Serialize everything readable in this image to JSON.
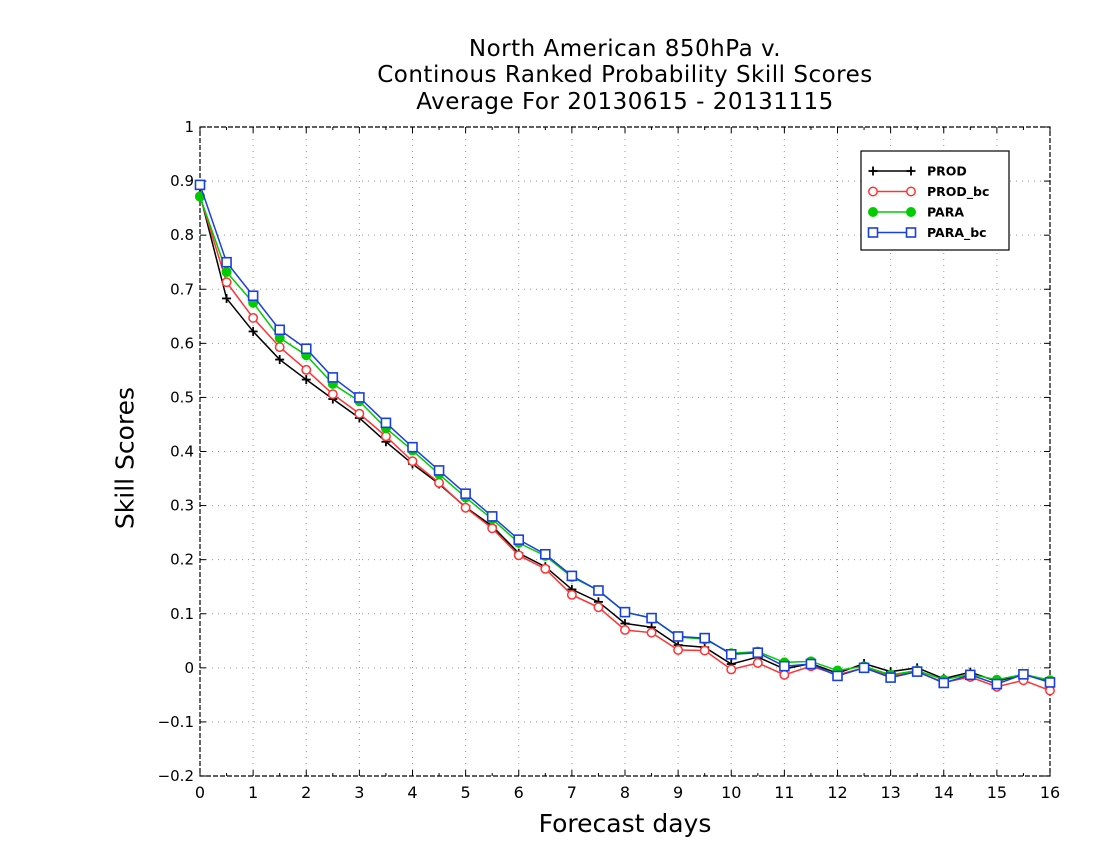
{
  "chart_data": {
    "type": "line",
    "title": [
      "North American 850hPa v.",
      "Continous Ranked Probability Skill Scores",
      "Average For 20130615 - 20131115"
    ],
    "xlabel": "Forecast days",
    "ylabel": "Skill Scores",
    "xlim": [
      0,
      16
    ],
    "ylim": [
      -0.2,
      1
    ],
    "x_ticks": [
      "0",
      "1",
      "2",
      "3",
      "4",
      "5",
      "6",
      "7",
      "8",
      "9",
      "10",
      "11",
      "12",
      "13",
      "14",
      "15",
      "16"
    ],
    "y_ticks": [
      "−0.2",
      "−0.1",
      "0",
      "0.1",
      "0.2",
      "0.3",
      "0.4",
      "0.5",
      "0.6",
      "0.7",
      "0.8",
      "0.9",
      "1"
    ],
    "grid": true,
    "legend_position": "top-right",
    "x": [
      0,
      0.5,
      1,
      1.5,
      2,
      2.5,
      3,
      3.5,
      4,
      4.5,
      5,
      5.5,
      6,
      6.5,
      7,
      7.5,
      8,
      8.5,
      9,
      9.5,
      10,
      10.5,
      11,
      11.5,
      12,
      12.5,
      13,
      13.5,
      14,
      14.5,
      15,
      15.5,
      16
    ],
    "series": [
      {
        "name": "PROD",
        "color": "#000000",
        "marker": "plus",
        "values": [
          0.875,
          0.683,
          0.622,
          0.57,
          0.533,
          0.497,
          0.462,
          0.418,
          0.377,
          0.34,
          0.297,
          0.262,
          0.212,
          0.187,
          0.145,
          0.122,
          0.082,
          0.075,
          0.042,
          0.038,
          0.007,
          0.02,
          -0.002,
          0.008,
          -0.01,
          0.008,
          -0.007,
          0.0,
          -0.02,
          -0.008,
          -0.025,
          -0.012,
          -0.025
        ]
      },
      {
        "name": "PROD_bc",
        "color": "#ff3333",
        "marker": "circle",
        "values": [
          0.872,
          0.713,
          0.647,
          0.593,
          0.551,
          0.506,
          0.47,
          0.428,
          0.382,
          0.342,
          0.296,
          0.258,
          0.208,
          0.183,
          0.135,
          0.112,
          0.07,
          0.065,
          0.033,
          0.032,
          -0.003,
          0.009,
          -0.013,
          0.003,
          -0.013,
          0.0,
          -0.015,
          -0.007,
          -0.027,
          -0.017,
          -0.035,
          -0.023,
          -0.042
        ]
      },
      {
        "name": "PARA",
        "color": "#00cc00",
        "marker": "dot",
        "values": [
          0.871,
          0.732,
          0.675,
          0.61,
          0.578,
          0.525,
          0.493,
          0.443,
          0.402,
          0.358,
          0.315,
          0.275,
          0.231,
          0.207,
          0.168,
          0.143,
          0.103,
          0.092,
          0.057,
          0.053,
          0.027,
          0.03,
          0.01,
          0.012,
          -0.005,
          0.003,
          -0.013,
          -0.005,
          -0.022,
          -0.012,
          -0.022,
          -0.012,
          -0.023
        ]
      },
      {
        "name": "PARA_bc",
        "color": "#1a3fe0",
        "marker": "square",
        "values": [
          0.893,
          0.75,
          0.688,
          0.625,
          0.59,
          0.537,
          0.5,
          0.453,
          0.408,
          0.365,
          0.322,
          0.28,
          0.237,
          0.21,
          0.17,
          0.143,
          0.103,
          0.092,
          0.058,
          0.055,
          0.025,
          0.028,
          0.003,
          0.007,
          -0.015,
          0.0,
          -0.018,
          -0.007,
          -0.028,
          -0.013,
          -0.03,
          -0.012,
          -0.027
        ]
      }
    ]
  }
}
